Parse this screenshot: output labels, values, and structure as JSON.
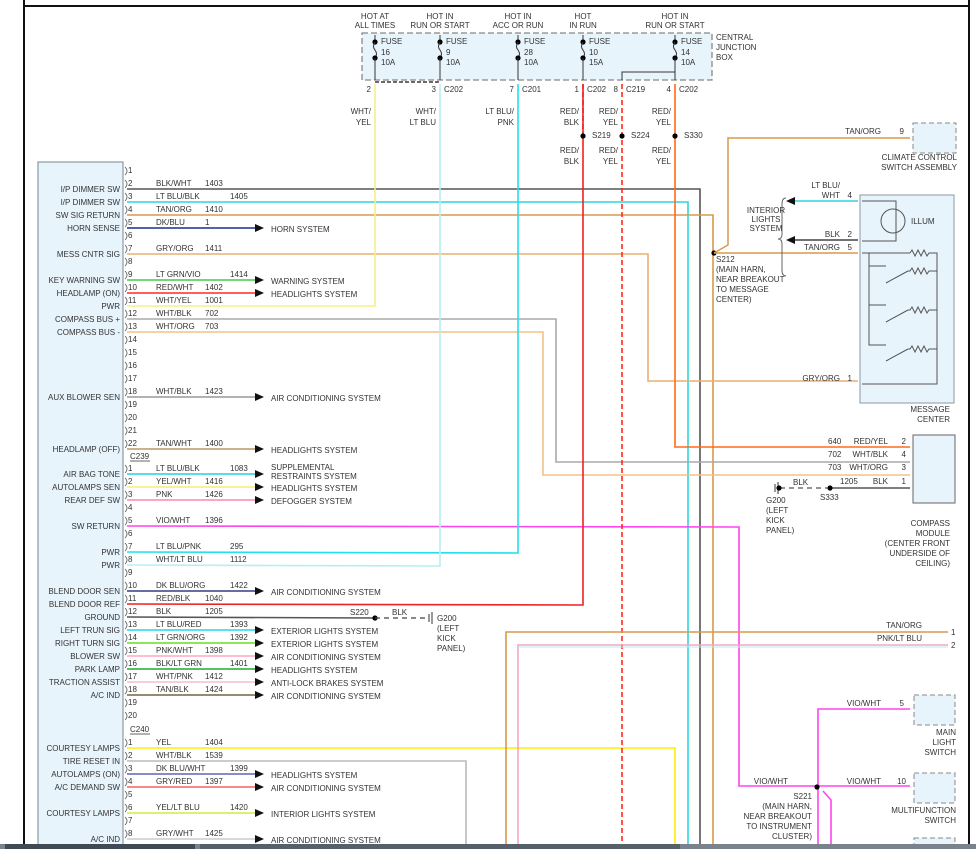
{
  "fuse_box": {
    "label": [
      "CENTRAL",
      "JUNCTION",
      "BOX"
    ],
    "fuses": [
      {
        "hot": [
          "HOT AT",
          "ALL TIMES"
        ],
        "name": "FUSE",
        "num": "16",
        "amp": "10A",
        "pin": "2",
        "conn": "",
        "wire": [
          "WHT/",
          "YEL"
        ],
        "color": "#f5ef8a"
      },
      {
        "hot": [
          "HOT IN",
          "RUN OR START"
        ],
        "name": "FUSE",
        "num": "9",
        "amp": "10A",
        "pin": "3",
        "conn": "C202",
        "wire": [
          "WHT/",
          "LT BLU"
        ],
        "color": "#b8eef2"
      },
      {
        "hot": [
          "HOT IN",
          "ACC OR RUN"
        ],
        "name": "FUSE",
        "num": "28",
        "amp": "10A",
        "pin": "7",
        "conn": "C201",
        "wire": [
          "LT BLU/",
          "PNK"
        ],
        "color": "#22e0ee"
      },
      {
        "hot": [
          "HOT",
          "IN RUN"
        ],
        "name": "FUSE",
        "num": "10",
        "amp": "15A",
        "pin": "1",
        "conn": "C202",
        "wire": [
          "RED/",
          "BLK"
        ],
        "color": "#ee2222"
      },
      {
        "hot": [
          "HOT IN",
          "RUN OR START"
        ],
        "name": "FUSE",
        "num": "14",
        "amp": "10A",
        "pin": "4",
        "conn": "C202",
        "wire": [
          "RED/",
          "YEL"
        ],
        "color": "#ff6a1a"
      }
    ],
    "branch": {
      "pin": "8",
      "conn": "C219",
      "wire": [
        "RED/",
        "YEL"
      ],
      "color": "#ff1a1a"
    }
  },
  "splices_top": [
    {
      "id": "S219",
      "wire": [
        "RED/",
        "BLK"
      ]
    },
    {
      "id": "S224",
      "wire": [
        "RED/",
        "YEL"
      ]
    },
    {
      "id": "S330",
      "wire": [
        "RED/",
        "YEL"
      ]
    }
  ],
  "connectors": [
    {
      "name": "",
      "rows": [
        {
          "pin": "1"
        },
        {
          "pin": "2",
          "func": "I/P DIMMER SW",
          "wire": "BLK/WHT",
          "circuit": "1403",
          "color": "#555555"
        },
        {
          "pin": "3",
          "func": "I/P DIMMER SW",
          "wire": "LT BLU/BLK",
          "circuit": "1405",
          "color": "#2fd3e0"
        },
        {
          "pin": "4",
          "func": "SW SIG RETURN",
          "wire": "TAN/ORG",
          "circuit": "1410",
          "color": "#d89a48"
        },
        {
          "pin": "5",
          "func": "HORN SENSE",
          "wire": "DK/BLU",
          "circuit": "1",
          "color": "#1b2f8a",
          "target": [
            "HORN SYSTEM"
          ]
        },
        {
          "pin": "6"
        },
        {
          "pin": "7",
          "func": "MESS CNTR SIG",
          "wire": "GRY/ORG",
          "circuit": "1411",
          "color": "#eab070"
        },
        {
          "pin": "8"
        },
        {
          "pin": "9",
          "func": "KEY WARNING SW",
          "wire": "LT GRN/VIO",
          "circuit": "1414",
          "color": "#44cc44",
          "target": [
            "WARNING SYSTEM"
          ]
        },
        {
          "pin": "10",
          "func": "HEADLAMP (ON)",
          "wire": "RED/WHT",
          "circuit": "1402",
          "color": "#ff2a2a",
          "target": [
            "HEADLIGHTS SYSTEM"
          ]
        },
        {
          "pin": "11",
          "func": "PWR",
          "wire": "WHT/YEL",
          "circuit": "1001",
          "color": "#f5ef8a"
        },
        {
          "pin": "12",
          "func": "COMPASS BUS +",
          "wire": "WHT/BLK",
          "circuit": "702",
          "color": "#aaaaaa"
        },
        {
          "pin": "13",
          "func": "COMPASS BUS -",
          "wire": "WHT/ORG",
          "circuit": "703",
          "color": "#f3c08a"
        },
        {
          "pin": "14"
        },
        {
          "pin": "15"
        },
        {
          "pin": "16"
        },
        {
          "pin": "17"
        },
        {
          "pin": "18",
          "func": "AUX BLOWER SEN",
          "wire": "WHT/BLK",
          "circuit": "1423",
          "color": "#999999",
          "target": [
            "AIR CONDITIONING SYSTEM"
          ]
        },
        {
          "pin": "19"
        },
        {
          "pin": "20"
        },
        {
          "pin": "21"
        },
        {
          "pin": "22",
          "func": "HEADLAMP (OFF)",
          "wire": "TAN/WHT",
          "circuit": "1400",
          "color": "#b89a60",
          "target": [
            "HEADLIGHTS SYSTEM"
          ]
        }
      ]
    },
    {
      "name": "C239",
      "rows": [
        {
          "pin": "1",
          "func": "AIR BAG TONE",
          "wire": "LT BLU/BLK",
          "circuit": "1083",
          "color": "#22d0e0",
          "target": [
            "SUPPLEMENTAL",
            "RESTRAINTS SYSTEM"
          ]
        },
        {
          "pin": "2",
          "func": "AUTOLAMPS SEN",
          "wire": "YEL/WHT",
          "circuit": "1416",
          "color": "#f8ec70",
          "target": [
            "HEADLIGHTS SYSTEM"
          ]
        },
        {
          "pin": "3",
          "func": "REAR DEF SW",
          "wire": "PNK",
          "circuit": "1426",
          "color": "#ff88aa",
          "target": [
            "DEFOGGER SYSTEM"
          ]
        },
        {
          "pin": "4"
        },
        {
          "pin": "5",
          "func": "SW RETURN",
          "wire": "VIO/WHT",
          "circuit": "1396",
          "color": "#ff44ee"
        },
        {
          "pin": "6"
        },
        {
          "pin": "7",
          "func": "PWR",
          "wire": "LT BLU/PNK",
          "circuit": "295",
          "color": "#22e0ee"
        },
        {
          "pin": "8",
          "func": "PWR",
          "wire": "WHT/LT BLU",
          "circuit": "1112",
          "color": "#b8eef2"
        },
        {
          "pin": "9"
        },
        {
          "pin": "10",
          "func": "BLEND DOOR SEN",
          "wire": "DK BLU/ORG",
          "circuit": "1422",
          "color": "#3a3a80",
          "target": [
            "AIR CONDITIONING SYSTEM"
          ]
        },
        {
          "pin": "11",
          "func": "BLEND DOOR REF",
          "wire": "RED/BLK",
          "circuit": "1040",
          "color": "#ee2222"
        },
        {
          "pin": "12",
          "func": "GROUND",
          "wire": "BLK",
          "circuit": "1205",
          "color": "#555555"
        },
        {
          "pin": "13",
          "func": "LEFT TRUN SIG",
          "wire": "LT BLU/RED",
          "circuit": "1393",
          "color": "#22d8e8",
          "target": [
            "EXTERIOR LIGHTS SYSTEM"
          ]
        },
        {
          "pin": "14",
          "func": "RIGHT TURN SIG",
          "wire": "LT GRN/ORG",
          "circuit": "1392",
          "color": "#66dd22",
          "target": [
            "EXTERIOR LIGHTS SYSTEM"
          ]
        },
        {
          "pin": "15",
          "func": "BLOWER SW",
          "wire": "PNK/WHT",
          "circuit": "1398",
          "color": "#ffa8c0",
          "target": [
            "AIR CONDITIONING SYSTEM"
          ]
        },
        {
          "pin": "16",
          "func": "PARK LAMP",
          "wire": "BLK/LT GRN",
          "circuit": "1401",
          "color": "#22aa33",
          "target": [
            "HEADLIGHTS SYSTEM"
          ]
        },
        {
          "pin": "17",
          "func": "TRACTION ASSIST",
          "wire": "WHT/PNK",
          "circuit": "1412",
          "color": "#f4c0cc",
          "target": [
            "ANTI-LOCK BRAKES SYSTEM"
          ]
        },
        {
          "pin": "18",
          "func": "A/C IND",
          "wire": "TAN/BLK",
          "circuit": "1424",
          "color": "#7a6040",
          "target": [
            "AIR CONDITIONING SYSTEM"
          ]
        },
        {
          "pin": "19"
        },
        {
          "pin": "20"
        }
      ]
    },
    {
      "name": "C240",
      "rows": [
        {
          "pin": "1",
          "func": "COURTESY LAMPS",
          "wire": "YEL",
          "circuit": "1404",
          "color": "#ffee00"
        },
        {
          "pin": "2",
          "func": "TIRE RESET IN",
          "wire": "WHT/BLK",
          "circuit": "1539",
          "color": "#bbbbbb"
        },
        {
          "pin": "3",
          "func": "AUTOLAMPS (ON)",
          "wire": "DK BLU/WHT",
          "circuit": "1399",
          "color": "#5a6ab0",
          "target": [
            "HEADLIGHTS SYSTEM"
          ]
        },
        {
          "pin": "4",
          "func": "A/C DEMAND SW",
          "wire": "GRY/RED",
          "circuit": "1397",
          "color": "#ee6666",
          "target": [
            "AIR CONDITIONING SYSTEM"
          ]
        },
        {
          "pin": "5"
        },
        {
          "pin": "6",
          "func": "COURTESY LAMPS",
          "wire": "YEL/LT BLU",
          "circuit": "1420",
          "color": "#ccee44",
          "target": [
            "INTERIOR LIGHTS SYSTEM"
          ]
        },
        {
          "pin": "7"
        },
        {
          "pin": "8",
          "func": "A/C IND",
          "wire": "GRY/WHT",
          "circuit": "1425",
          "color": "#cccccc",
          "target": [
            "AIR CONDITIONING SYSTEM"
          ]
        }
      ]
    }
  ],
  "labels": {
    "s220": "S220",
    "s220_blk": "BLK",
    "g200a": [
      "G200",
      "(LEFT",
      "KICK",
      "PANEL)"
    ],
    "climate_wire": "TAN/ORG",
    "climate_pin": "9",
    "climate_name": [
      "CLIMATE CONTROL",
      "SWITCH ASSEMBLY"
    ],
    "interior": [
      "INTERIOR",
      "LIGHTS",
      "SYSTEM"
    ],
    "mc_w4": [
      "LT BLU/",
      "WHT"
    ],
    "mc_p4": "4",
    "mc_w2": "BLK",
    "mc_p2": "2",
    "mc_w5": "TAN/ORG",
    "mc_p5": "5",
    "mc_w1": "GRY/ORG",
    "mc_p1": "1",
    "illum": "ILLUM",
    "mc_name": [
      "MESSAGE",
      "CENTER"
    ],
    "s212": [
      "S212",
      "(MAIN HARN,",
      "NEAR BREAKOUT",
      "TO MESSAGE",
      "CENTER)"
    ],
    "cm_rows": [
      {
        "circuit": "640",
        "wire": "RED/YEL",
        "pin": "2"
      },
      {
        "circuit": "702",
        "wire": "WHT/BLK",
        "pin": "4"
      },
      {
        "circuit": "703",
        "wire": "WHT/ORG",
        "pin": "3"
      },
      {
        "circuit": "1205",
        "wire": "BLK",
        "pin": "1"
      }
    ],
    "cm_blk": "BLK",
    "s333": "S333",
    "g200b": [
      "G200",
      "(LEFT",
      "KICK",
      "PANEL)"
    ],
    "cm_name": [
      "COMPASS",
      "MODULE",
      "(CENTER FRONT",
      "UNDERSIDE OF",
      "CEILING)"
    ],
    "r_w1": "TAN/ORG",
    "r_p1": "1",
    "r_w2": "PNK/LT BLU",
    "r_p2": "2",
    "ml_wire": "VIO/WHT",
    "ml_pin": "5",
    "ml_name": [
      "MAIN",
      "LIGHT",
      "SWITCH"
    ],
    "s221_left": "VIO/WHT",
    "mf_wire": "VIO/WHT",
    "mf_pin": "10",
    "mf_name": [
      "MULTIFUNCTION",
      "SWITCH"
    ],
    "s221": [
      "S221",
      "(MAIN HARN,",
      "NEAR BREAKOUT",
      "TO INSTRUMENT",
      "CLUSTER)"
    ]
  },
  "colors": {
    "module_fill": "#e8f4fc",
    "border": "#8a9aa6",
    "tan": "#d89a48",
    "violet": "#ff44ee",
    "red_yel": "#ff2a1a"
  }
}
